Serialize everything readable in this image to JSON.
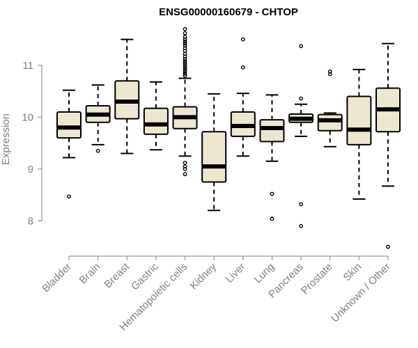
{
  "chart_data": {
    "type": "boxplot",
    "title": "ENSG00000160679 - CHTOP",
    "xlabel": "",
    "ylabel": "Expression",
    "ylim": [
      7.4,
      11.75
    ],
    "yticks": [
      8,
      9,
      10,
      11
    ],
    "box_fill": "#ede6d0",
    "box_stroke": "#000000",
    "axis_color": "#808080",
    "categories": [
      "Bladder",
      "Brain",
      "Breast",
      "Gastric",
      "Hematopoietic cells",
      "Kidney",
      "Liver",
      "Lung",
      "Pancreas",
      "Prostate",
      "Skin",
      "Unknown / Other"
    ],
    "boxes": [
      {
        "name": "Bladder",
        "whisker_low": 9.22,
        "q1": 9.6,
        "median": 9.8,
        "q3": 10.1,
        "whisker_high": 10.52,
        "outliers": [
          8.47
        ]
      },
      {
        "name": "Brain",
        "whisker_low": 9.47,
        "q1": 9.9,
        "median": 10.05,
        "q3": 10.22,
        "whisker_high": 10.62,
        "outliers": [
          9.35
        ]
      },
      {
        "name": "Breast",
        "whisker_low": 9.3,
        "q1": 9.97,
        "median": 10.3,
        "q3": 10.7,
        "whisker_high": 11.5,
        "outliers": []
      },
      {
        "name": "Gastric",
        "whisker_low": 9.37,
        "q1": 9.67,
        "median": 9.86,
        "q3": 10.17,
        "whisker_high": 10.68,
        "outliers": []
      },
      {
        "name": "Hematopoietic cells",
        "whisker_low": 9.25,
        "q1": 9.78,
        "median": 10.0,
        "q3": 10.2,
        "whisker_high": 10.75,
        "outliers": [
          11.7,
          11.62,
          11.55,
          11.5,
          11.46,
          11.42,
          11.38,
          11.33,
          11.28,
          11.22,
          11.17,
          11.12,
          11.08,
          11.04,
          11.0,
          10.96,
          10.92,
          10.88,
          10.84,
          10.8,
          9.12,
          9.05,
          9.0,
          8.9
        ]
      },
      {
        "name": "Kidney",
        "whisker_low": 8.2,
        "q1": 8.75,
        "median": 9.05,
        "q3": 9.72,
        "whisker_high": 10.45,
        "outliers": []
      },
      {
        "name": "Liver",
        "whisker_low": 9.25,
        "q1": 9.63,
        "median": 9.83,
        "q3": 10.1,
        "whisker_high": 10.46,
        "outliers": [
          11.5,
          10.96
        ]
      },
      {
        "name": "Lung",
        "whisker_low": 9.15,
        "q1": 9.53,
        "median": 9.79,
        "q3": 9.95,
        "whisker_high": 10.43,
        "outliers": [
          8.52,
          8.04
        ]
      },
      {
        "name": "Pancreas",
        "whisker_low": 9.63,
        "q1": 9.9,
        "median": 9.97,
        "q3": 10.06,
        "whisker_high": 10.25,
        "outliers": [
          11.37,
          10.36,
          8.32,
          7.9
        ]
      },
      {
        "name": "Prostate",
        "whisker_low": 9.43,
        "q1": 9.74,
        "median": 9.94,
        "q3": 10.05,
        "whisker_high": 10.08,
        "outliers": [
          10.88,
          10.83
        ]
      },
      {
        "name": "Skin",
        "whisker_low": 8.42,
        "q1": 9.47,
        "median": 9.76,
        "q3": 10.4,
        "whisker_high": 10.92,
        "outliers": []
      },
      {
        "name": "Unknown / Other",
        "whisker_low": 8.67,
        "q1": 9.72,
        "median": 10.15,
        "q3": 10.56,
        "whisker_high": 11.42,
        "outliers": [
          7.5
        ]
      }
    ]
  }
}
